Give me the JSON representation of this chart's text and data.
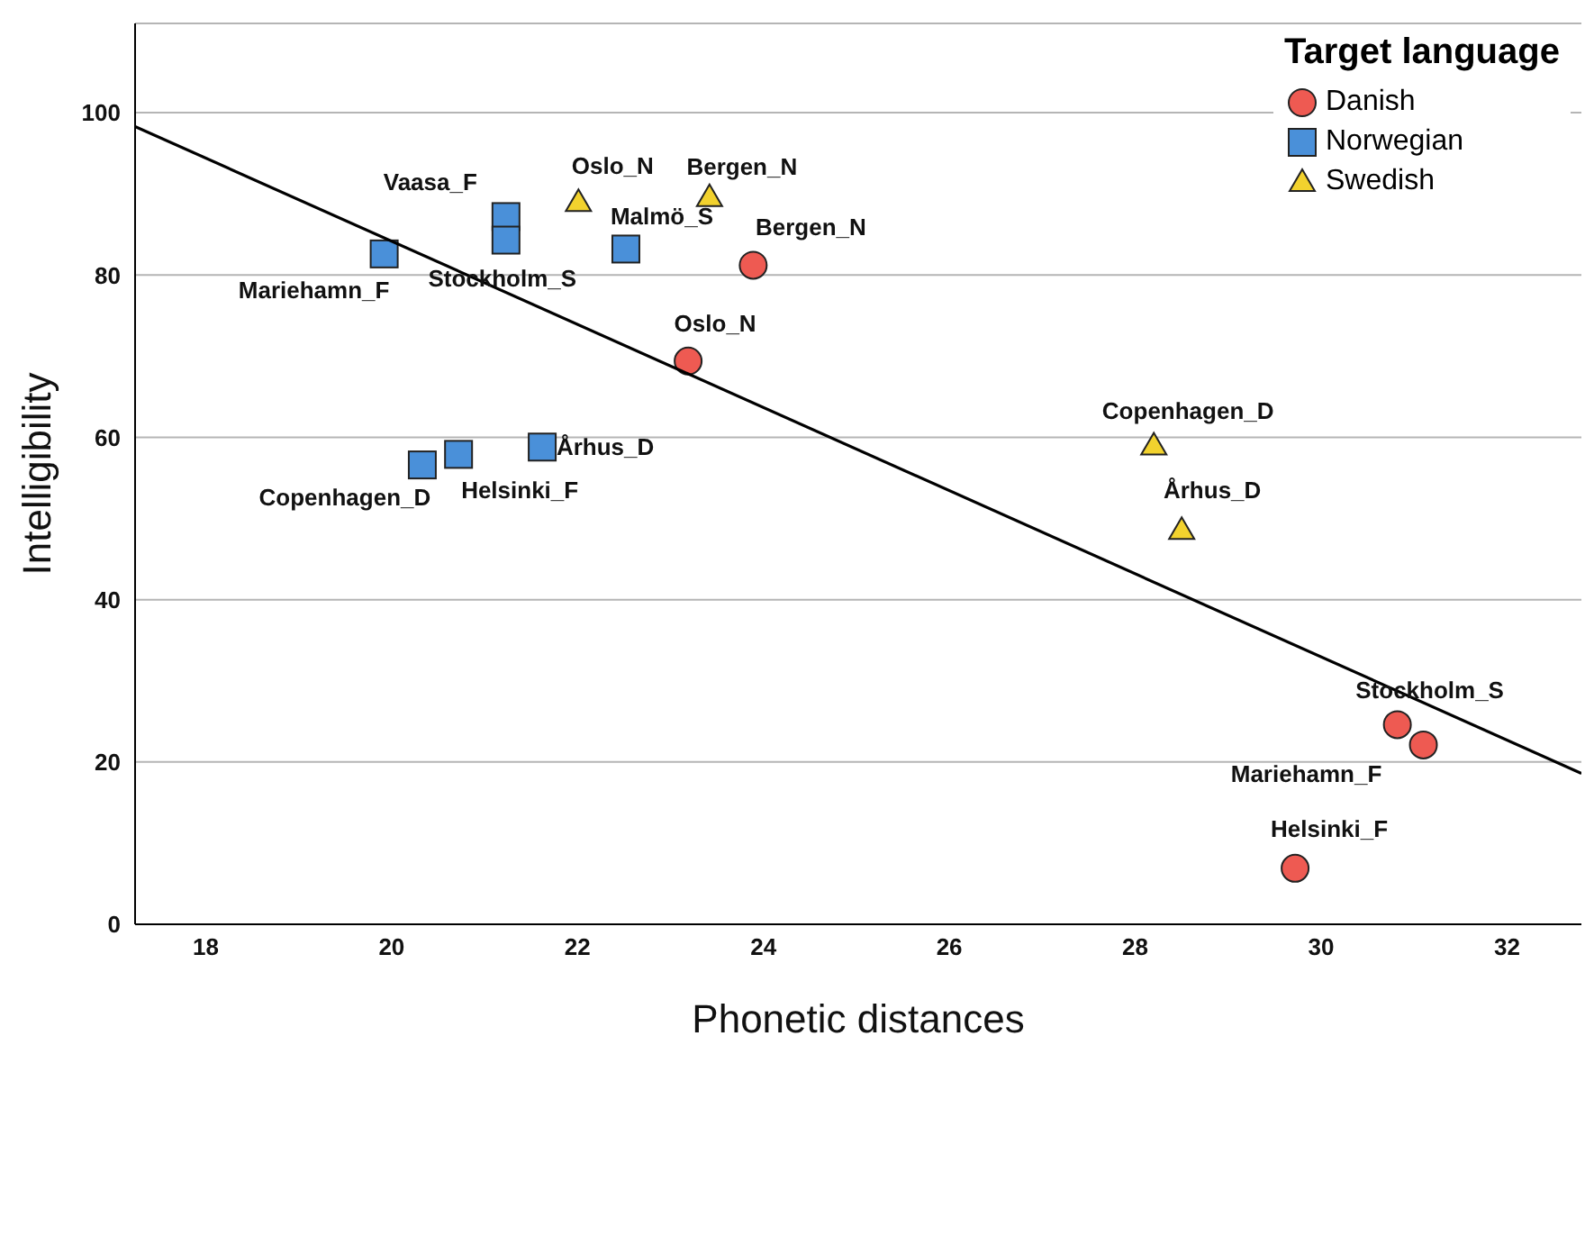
{
  "chart_data": {
    "type": "scatter",
    "xlabel": "Phonetic distances",
    "ylabel": "Intelligibility",
    "legend_title": "Target language",
    "xlim": [
      17.24,
      32.8
    ],
    "xticks": [
      18,
      20,
      22,
      24,
      26,
      28,
      30,
      32
    ],
    "ylim": [
      0,
      111
    ],
    "yticks": [
      0,
      20,
      40,
      60,
      80,
      100
    ],
    "grid": "y",
    "legend": "top right",
    "series": [
      {
        "name": "Danish",
        "color": "#ee5a52",
        "marker": "circle",
        "x": [
          23.89,
          23.19,
          30.82,
          31.1,
          29.72
        ],
        "values": [
          81.2,
          69.4,
          24.6,
          22.1,
          6.9
        ]
      },
      {
        "name": "Norwegian",
        "color": "#4a90d9",
        "marker": "square",
        "x": [
          21.23,
          21.23,
          19.92,
          22.52,
          20.33,
          20.72,
          21.62
        ],
        "values": [
          87.2,
          84.3,
          82.6,
          83.2,
          56.6,
          57.9,
          58.8
        ]
      },
      {
        "name": "Swedish",
        "color": "#f2d22e",
        "marker": "triangle",
        "x": [
          22.01,
          23.42,
          28.2,
          28.5
        ],
        "values": [
          89.0,
          89.6,
          59.0,
          48.6
        ]
      },
      {
        "type": "line",
        "color": "#000000",
        "marker": "none",
        "x": [
          17.24,
          32.8
        ],
        "values": [
          98.3,
          18.6
        ]
      }
    ],
    "annotations": [
      {
        "text": "Oslo_N",
        "x": 22.01,
        "y": 89.0
      },
      {
        "text": "Bergen_N",
        "x": 23.42,
        "y": 89.6
      },
      {
        "text": "Vaasa_F",
        "x": 21.23,
        "y": 87.2
      },
      {
        "text": "Malmö_S",
        "x": 22.52,
        "y": 83.2
      },
      {
        "text": "Bergen_N",
        "x": 23.89,
        "y": 81.2
      },
      {
        "text": "Mariehamn_F",
        "x": 19.92,
        "y": 82.6
      },
      {
        "text": "Stockholm_S",
        "x": 21.23,
        "y": 84.3
      },
      {
        "text": "Oslo_N",
        "x": 23.19,
        "y": 69.4
      },
      {
        "text": "Copenhagen_D",
        "x": 20.33,
        "y": 56.6
      },
      {
        "text": "Helsinki_F",
        "x": 20.72,
        "y": 57.9
      },
      {
        "text": "Århus_D",
        "x": 21.62,
        "y": 58.8
      },
      {
        "text": "Copenhagen_D",
        "x": 28.2,
        "y": 59.0
      },
      {
        "text": "Århus_D",
        "x": 28.5,
        "y": 48.6
      },
      {
        "text": "Stockholm_S",
        "x": 30.82,
        "y": 24.6
      },
      {
        "text": "Mariehamn_F",
        "x": 31.1,
        "y": 22.1
      },
      {
        "text": "Helsinki_F",
        "x": 29.72,
        "y": 6.9
      }
    ]
  }
}
